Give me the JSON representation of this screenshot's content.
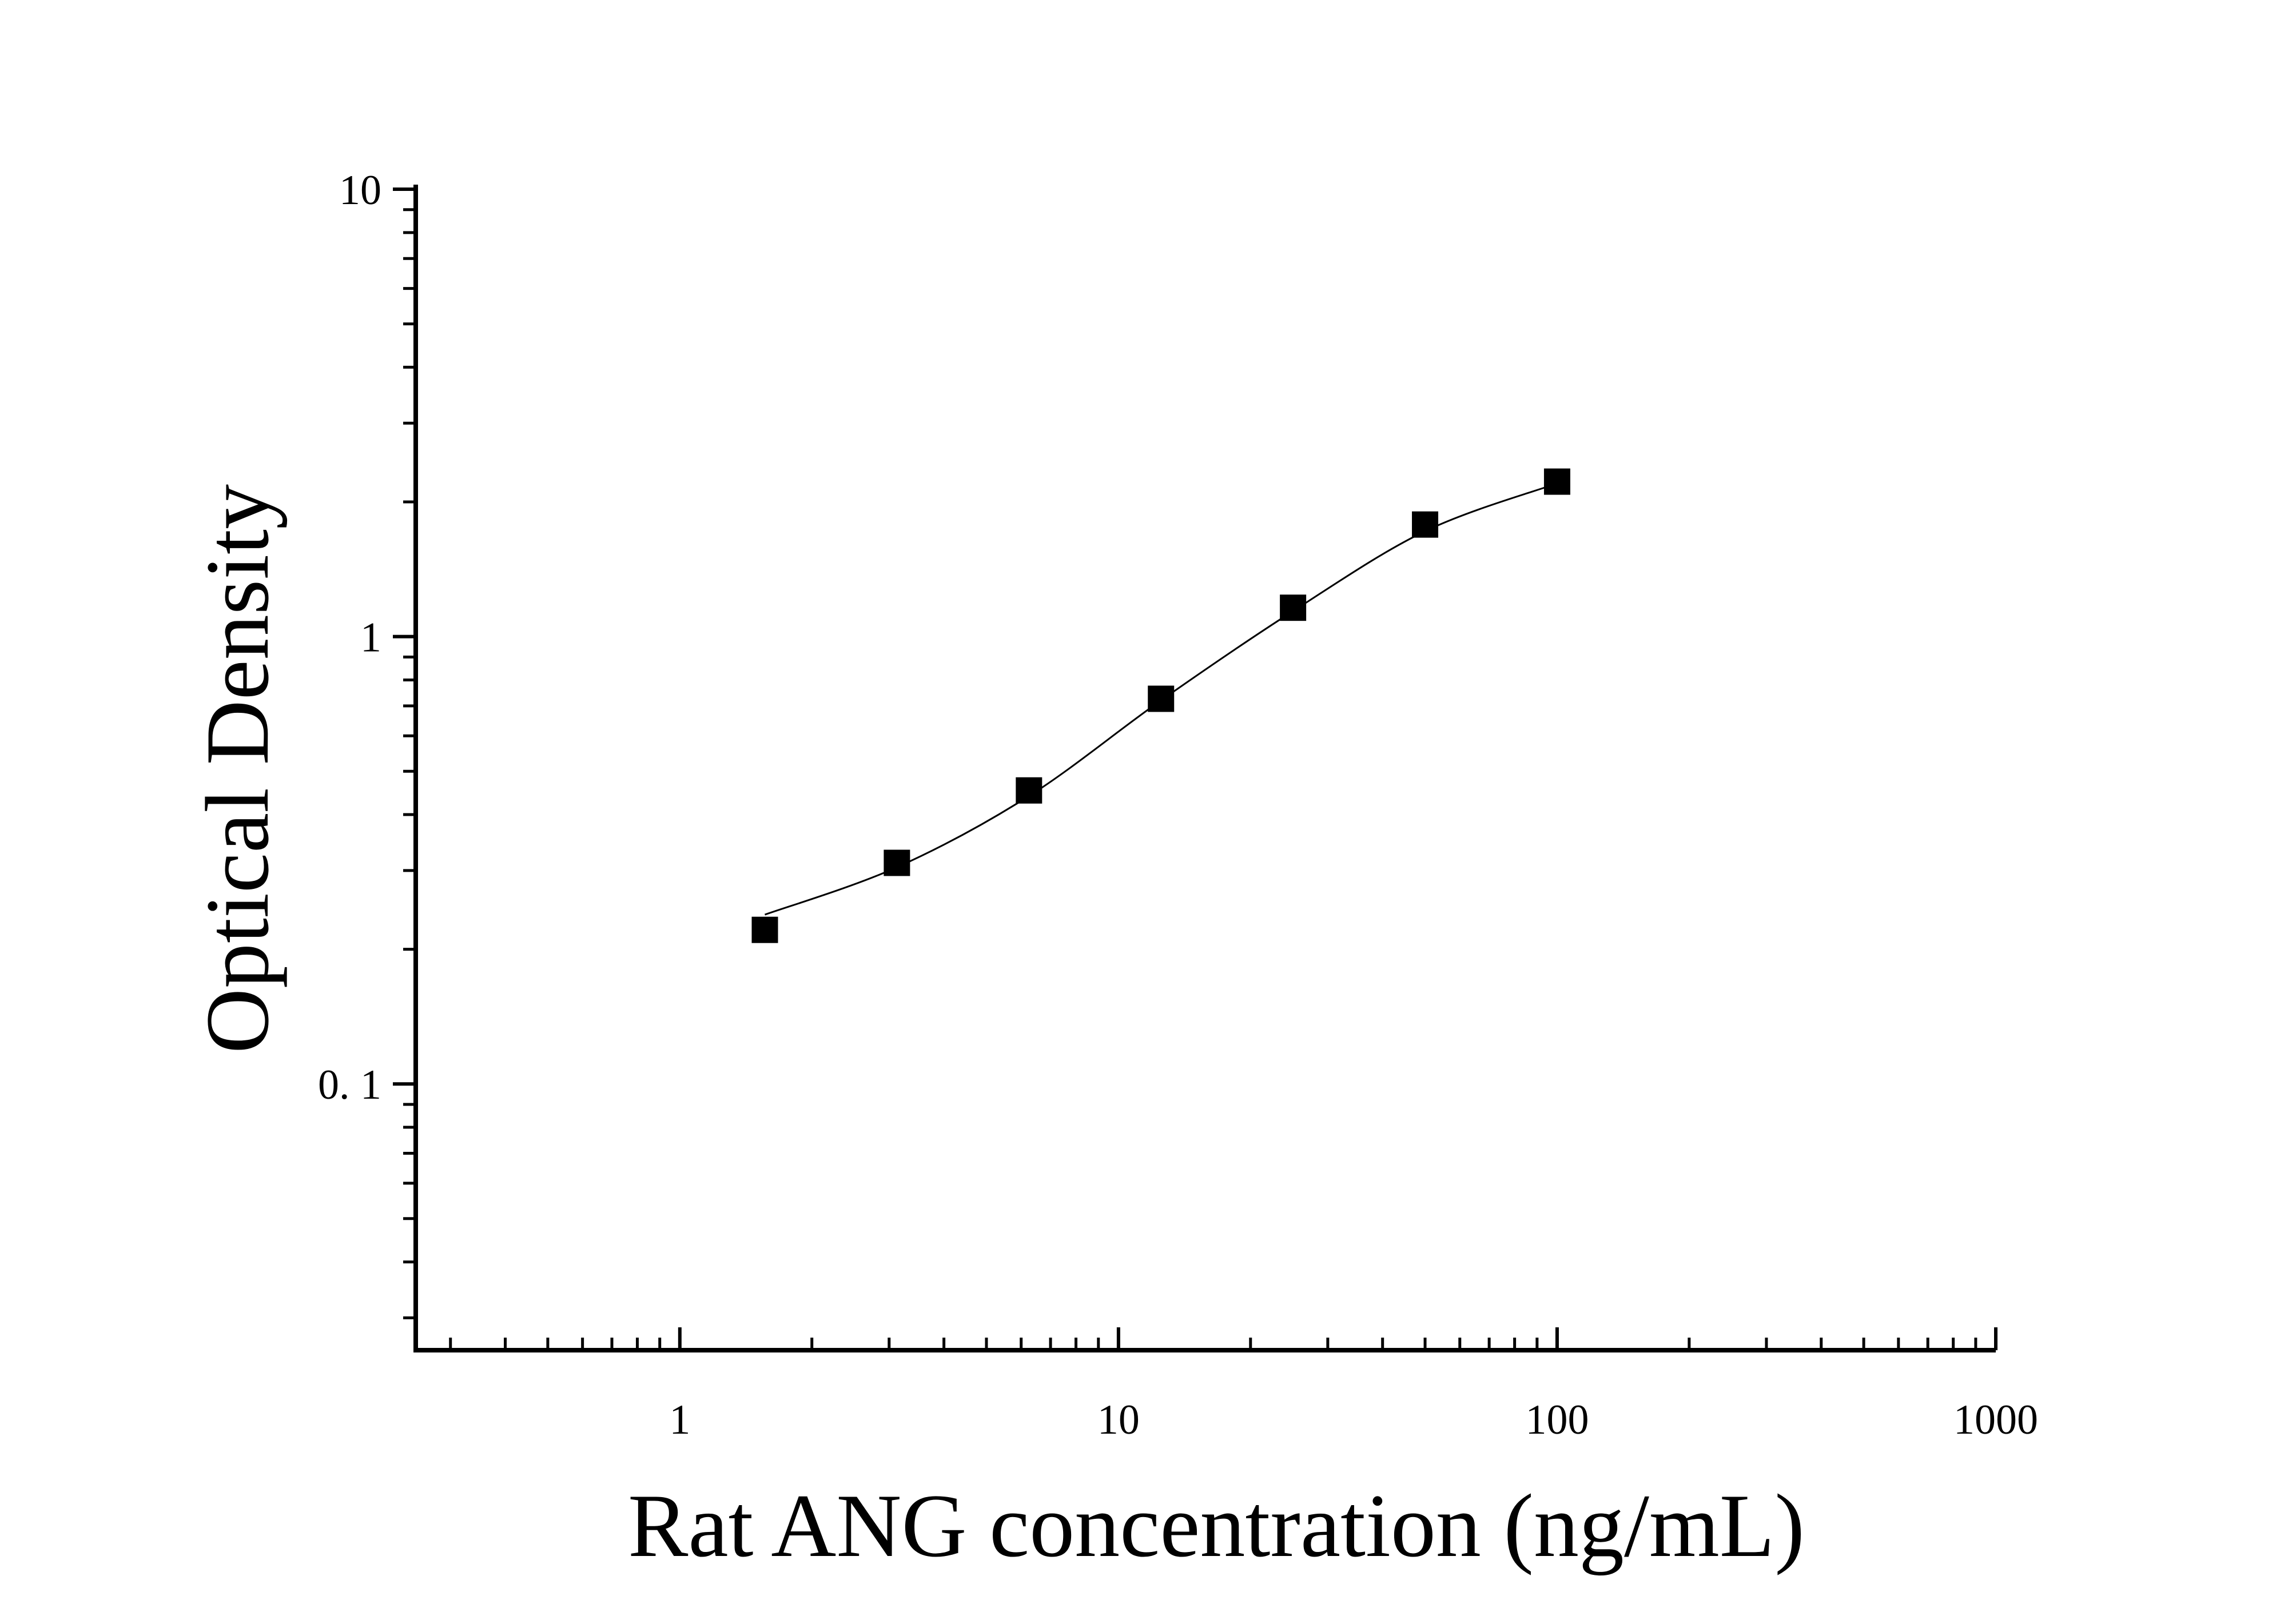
{
  "chart_data": {
    "type": "scatter",
    "x_label": "Rat ANG concentration (ng/mL)",
    "y_label": "Optical Density",
    "x": [
      1.5625,
      3.125,
      6.25,
      12.5,
      25,
      50,
      100
    ],
    "series": [
      {
        "color": "#000000",
        "values": [
          0.221,
          0.312,
          0.453,
          0.726,
          1.16,
          1.78,
          2.22
        ]
      }
    ],
    "curve": {
      "color": "#000000",
      "x": [
        1.5625,
        3.125,
        6.25,
        12.5,
        25,
        50,
        100
      ],
      "values": [
        0.239,
        0.305,
        0.44,
        0.72,
        1.14,
        1.72,
        2.2
      ]
    },
    "xlim": [
      0.25,
      1000
    ],
    "ylim": [
      0.0254,
      10
    ],
    "xticks": [
      1,
      10,
      100,
      1000
    ],
    "yticks": [
      {
        "value": 0.1,
        "label": "0. 1"
      },
      1,
      10
    ],
    "xscale": "log",
    "yscale": "log",
    "grid": false
  }
}
